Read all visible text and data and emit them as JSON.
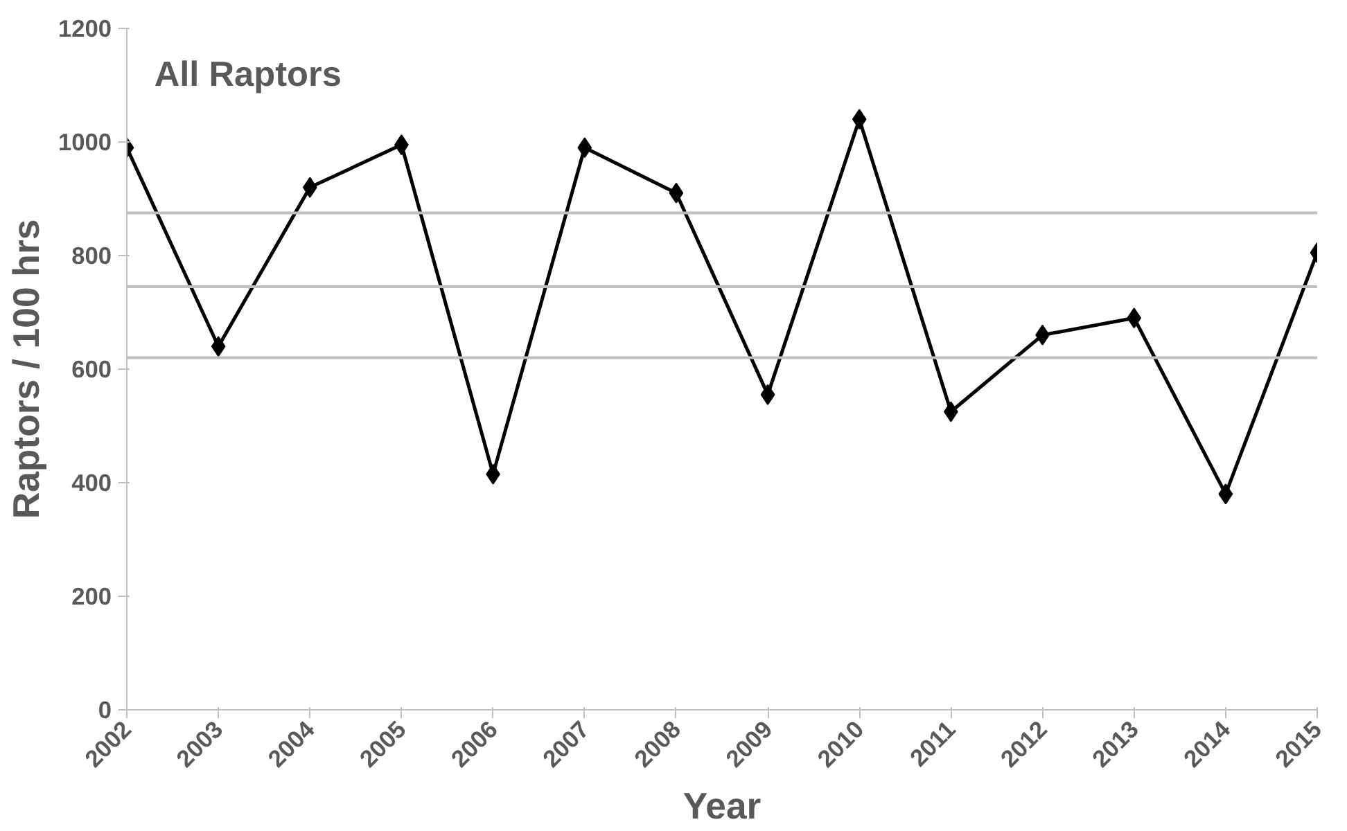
{
  "chart_data": {
    "type": "line",
    "title": "All Raptors",
    "xlabel": "Year",
    "ylabel": "Raptors / 100 hrs",
    "categories": [
      "2002",
      "2003",
      "2004",
      "2005",
      "2006",
      "2007",
      "2008",
      "2009",
      "2010",
      "2011",
      "2012",
      "2013",
      "2014",
      "2015"
    ],
    "series": [
      {
        "color": "#000000",
        "values": [
          990,
          640,
          920,
          995,
          415,
          990,
          910,
          555,
          1040,
          525,
          660,
          690,
          380,
          805
        ]
      }
    ],
    "ylim": [
      0,
      1200
    ],
    "yticks": [
      0,
      200,
      400,
      600,
      800,
      1000,
      1200
    ],
    "grid": false,
    "marker": "diamond",
    "line_style": "solid",
    "ref_lines": [
      {
        "axis": "y",
        "value": 875,
        "color": "#bfbfbf"
      },
      {
        "axis": "y",
        "value": 745,
        "color": "#bfbfbf"
      },
      {
        "axis": "y",
        "value": 620,
        "color": "#bfbfbf"
      }
    ]
  }
}
